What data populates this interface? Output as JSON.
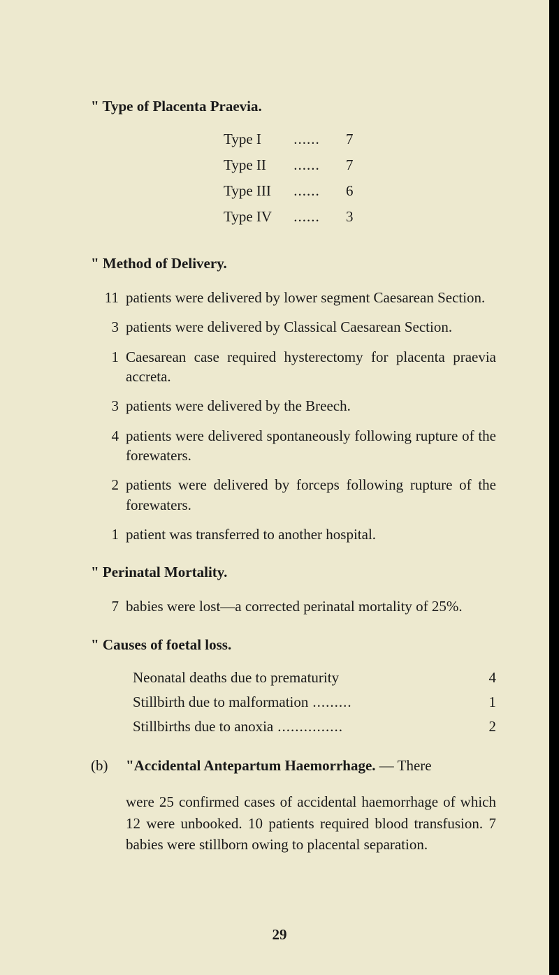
{
  "headings": {
    "type_placenta": "\" Type of Placenta Praevia.",
    "method_delivery": "\" Method of Delivery.",
    "perinatal_mortality": "\" Perinatal Mortality.",
    "causes_foetal_loss": "\" Causes of foetal loss."
  },
  "type_rows": [
    {
      "label": "Type I",
      "dots": "......",
      "value": "7"
    },
    {
      "label": "Type II",
      "dots": "......",
      "value": "7"
    },
    {
      "label": "Type III",
      "dots": "......",
      "value": "6"
    },
    {
      "label": "Type IV",
      "dots": "......",
      "value": "3"
    }
  ],
  "method_items": [
    {
      "n": "11",
      "t": "patients were delivered by lower segment Caesarean Section."
    },
    {
      "n": "3",
      "t": "patients were delivered by Classical Caesarean Section."
    },
    {
      "n": "1",
      "t": "Caesarean case required hysterectomy for placenta praevia accreta."
    },
    {
      "n": "3",
      "t": "patients were delivered by the Breech."
    },
    {
      "n": "4",
      "t": "patients were delivered spontaneously following rupture of the forewaters."
    },
    {
      "n": "2",
      "t": "patients were delivered by forceps following rupture of the forewaters."
    },
    {
      "n": "1",
      "t": "patient was transferred to another hospital."
    }
  ],
  "perinatal": {
    "n": "7",
    "t": "babies were lost—a corrected perinatal mortality of 25%."
  },
  "causes": [
    {
      "label": "Neonatal deaths due to prematurity",
      "value": "4"
    },
    {
      "label": "Stillbirth due to malformation",
      "dots": ".........",
      "value": "1"
    },
    {
      "label": "Stillbirths due to anoxia",
      "dots": "...............",
      "value": "2"
    }
  ],
  "section_b": {
    "marker": "(b)",
    "title_strong": "\"Accidental Antepartum Haemorrhage.",
    "title_tail": " — There",
    "body": "were 25 confirmed cases of accidental haemorrhage of which 12 were unbooked. 10 patients required blood transfusion. 7 babies were stillborn owing to placental separation."
  },
  "page_number": "29",
  "colors": {
    "background": "#ede9cf",
    "text": "#1a1a1a",
    "edge": "#000000"
  }
}
